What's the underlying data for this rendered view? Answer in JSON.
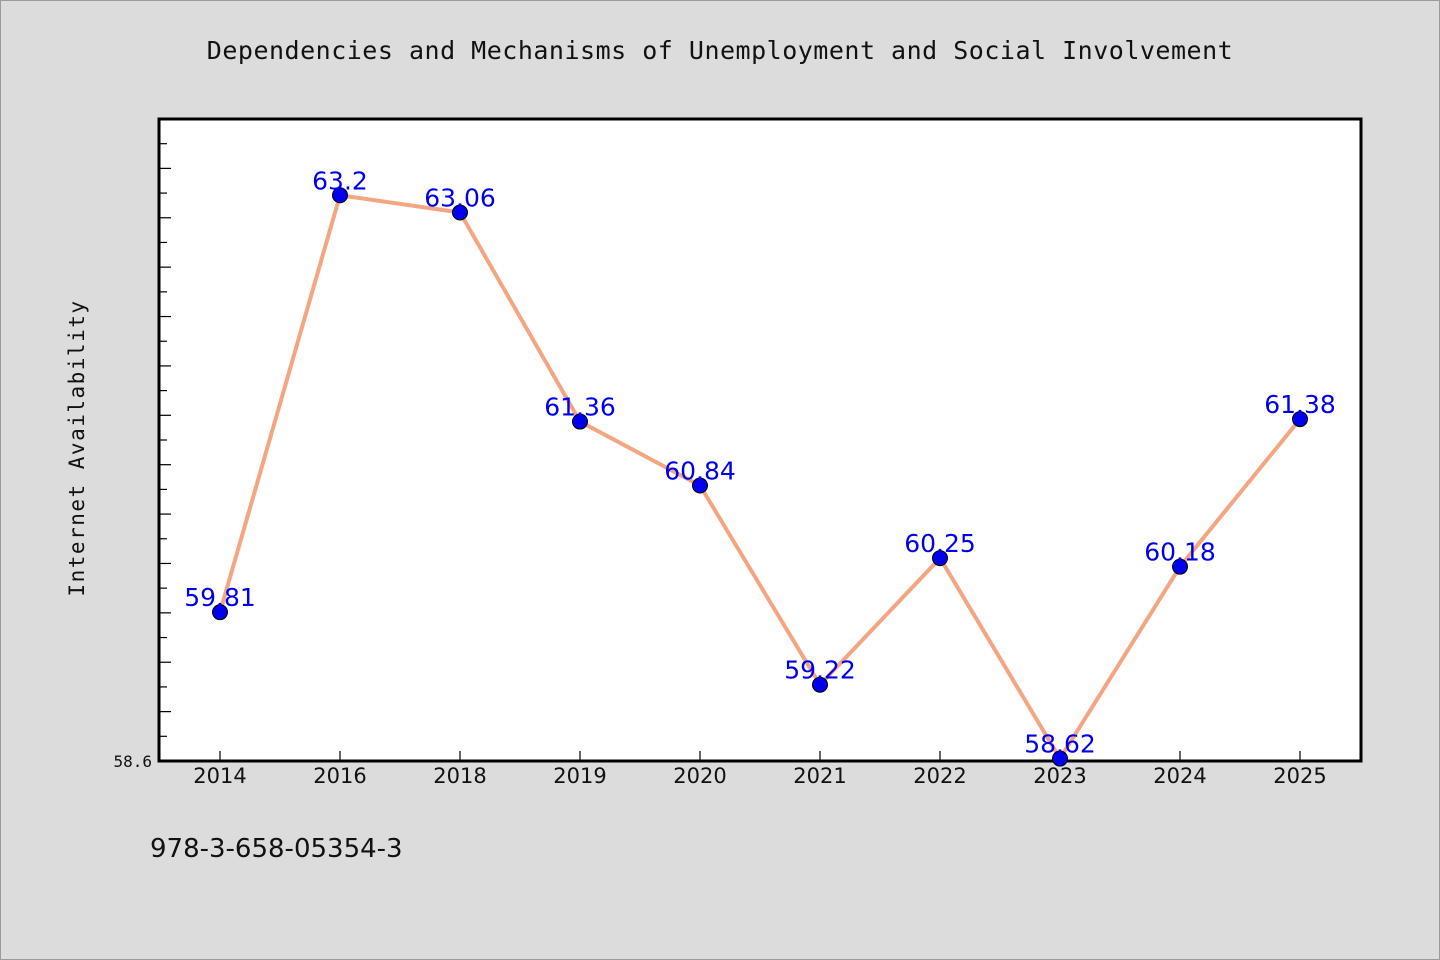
{
  "chart_data": {
    "type": "line",
    "title": "Dependencies and Mechanisms of Unemployment and Social Involvement",
    "xlabel": "",
    "ylabel": "Internet Availability",
    "categories": [
      "2014",
      "2016",
      "2018",
      "2019",
      "2020",
      "2021",
      "2022",
      "2023",
      "2024",
      "2025"
    ],
    "series": [
      {
        "values": [
          59.81,
          63.2,
          63.06,
          61.36,
          60.84,
          59.22,
          60.25,
          58.62,
          60.18,
          61.38
        ],
        "data_labels": [
          "59.81",
          "63.2",
          "63.06",
          "61.36",
          "60.84",
          "59.22",
          "60.25",
          "58.62",
          "60.18",
          "61.38"
        ]
      }
    ],
    "ylim": [
      58.6,
      63.82
    ],
    "ytick_labels": [
      "58.6"
    ],
    "grid": false,
    "legend": "none",
    "colors": {
      "line": "#f4a582",
      "marker": "#0000ee",
      "data_label": "#0000ee",
      "background": "#dcdcdc",
      "plot_background": "#ffffff"
    }
  },
  "footer": {
    "code": "978-3-658-05354-3"
  }
}
